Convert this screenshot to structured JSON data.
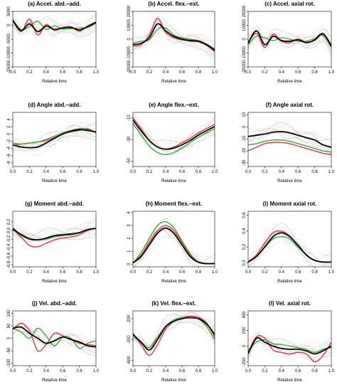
{
  "figure": {
    "colors": {
      "mean": "#000000",
      "red": "#e8324a",
      "green": "#3aaa35",
      "red_light": "#f2a0aa",
      "green_light": "#a8d8a0",
      "gray_light": "#555555"
    }
  },
  "chart_data": [
    {
      "type": "line",
      "title": "(a) Accel. abd.–add.",
      "xlabel": "Relative time",
      "ylabel": "",
      "xlim": [
        0,
        1
      ],
      "ylim": [
        -15000,
        5000
      ],
      "xticks": [
        "0.0",
        "0.2",
        "0.4",
        "0.6",
        "0.8",
        "1.0"
      ],
      "yticks": [
        "5000",
        "0",
        "-5000",
        "-10000",
        "-15000"
      ],
      "x": [
        0,
        0.1,
        0.2,
        0.3,
        0.4,
        0.5,
        0.6,
        0.7,
        0.8,
        0.9,
        1.0
      ],
      "series": [
        {
          "name": "mean",
          "style": "mean",
          "values": [
            1800,
            -2000,
            500,
            -2300,
            -300,
            -1500,
            -1000,
            -800,
            -1700,
            -500,
            1000
          ]
        },
        {
          "name": "red",
          "style": "red",
          "values": [
            1500,
            -2200,
            2200,
            -3500,
            300,
            -1800,
            -800,
            -500,
            -2200,
            -200,
            1200
          ]
        },
        {
          "name": "green",
          "style": "green",
          "values": [
            2000,
            -1500,
            -500,
            1500,
            -1500,
            -200,
            -1300,
            -1200,
            -1000,
            -800,
            800
          ]
        }
      ]
    },
    {
      "type": "line",
      "title": "(b) Accel. flex.–ext.",
      "xlabel": "Relative time",
      "ylabel": "",
      "xlim": [
        0,
        1
      ],
      "ylim": [
        -20000,
        20000
      ],
      "xticks": [
        "0.0",
        "0.2",
        "0.4",
        "0.6",
        "0.8",
        "1.0"
      ],
      "yticks": [
        "20000",
        "10000",
        "0",
        "-10000",
        "-20000"
      ],
      "x": [
        0,
        0.1,
        0.2,
        0.3,
        0.4,
        0.5,
        0.6,
        0.7,
        0.8,
        0.9,
        1.0
      ],
      "series": [
        {
          "name": "mean",
          "style": "mean",
          "values": [
            -4000,
            -3000,
            1000,
            11000,
            6000,
            2000,
            0,
            -1000,
            -1500,
            -4000,
            -8000
          ]
        },
        {
          "name": "red",
          "style": "red",
          "values": [
            -5000,
            -4000,
            3000,
            15000,
            5000,
            1000,
            -500,
            -1500,
            -2000,
            -4500,
            -9000
          ]
        },
        {
          "name": "green",
          "style": "green",
          "values": [
            -3000,
            -1500,
            -500,
            7000,
            8000,
            3000,
            1000,
            0,
            -1000,
            -3500,
            -7000
          ]
        }
      ]
    },
    {
      "type": "line",
      "title": "(c) Accel. axial rot.",
      "xlabel": "Relative time",
      "ylabel": "",
      "xlim": [
        0,
        1
      ],
      "ylim": [
        -20000,
        20000
      ],
      "xticks": [
        "0.0",
        "0.2",
        "0.4",
        "0.6",
        "0.8",
        "1.0"
      ],
      "yticks": [
        "20000",
        "10000",
        "0",
        "-10000",
        "-20000"
      ],
      "x": [
        0,
        0.1,
        0.2,
        0.3,
        0.4,
        0.5,
        0.6,
        0.7,
        0.8,
        0.9,
        1.0
      ],
      "series": [
        {
          "name": "mean",
          "style": "mean",
          "values": [
            -3000,
            6000,
            -4000,
            2000,
            -1000,
            -1500,
            -500,
            -2500,
            -500,
            4000,
            -5000
          ]
        },
        {
          "name": "red",
          "style": "red",
          "values": [
            -2000,
            4000,
            -6000,
            3500,
            -1500,
            -2500,
            0,
            -2000,
            -1000,
            3500,
            -4000
          ]
        },
        {
          "name": "green",
          "style": "green",
          "values": [
            -4000,
            2000,
            1000,
            -1000,
            1000,
            0,
            -1500,
            -1500,
            500,
            2500,
            -6000
          ]
        }
      ]
    },
    {
      "type": "line",
      "title": "(d) Angle abd.–add.",
      "xlabel": "Relative time",
      "ylabel": "",
      "xlim": [
        0,
        1
      ],
      "ylim": [
        -9,
        6
      ],
      "xticks": [
        "0.0",
        "0.2",
        "0.4",
        "0.6",
        "0.8",
        "1.0"
      ],
      "yticks": [
        "4",
        "2",
        "0",
        "-2",
        "-4",
        "-6",
        "-8"
      ],
      "x": [
        0,
        0.1,
        0.2,
        0.3,
        0.4,
        0.5,
        0.6,
        0.7,
        0.8,
        0.9,
        1.0
      ],
      "series": [
        {
          "name": "mean",
          "style": "mean",
          "values": [
            -3,
            -3.6,
            -3.8,
            -3.6,
            -2.5,
            -1.2,
            0,
            0.8,
            1.2,
            1.0,
            0.6
          ]
        },
        {
          "name": "red",
          "style": "red",
          "values": [
            -2.5,
            -2.8,
            -2.5,
            -2.2,
            -1.8,
            -1.0,
            0,
            0.6,
            1.0,
            1.5,
            0.3
          ]
        },
        {
          "name": "green",
          "style": "green",
          "values": [
            -3.2,
            -2.8,
            -2.5,
            -2.2,
            -1.5,
            -0.6,
            0.3,
            1.0,
            1.5,
            1.3,
            0.5
          ]
        }
      ]
    },
    {
      "type": "line",
      "title": "(e) Angle flex.–ext.",
      "xlabel": "Relative time",
      "ylabel": "",
      "xlim": [
        0,
        1
      ],
      "ylim": [
        -55,
        -5
      ],
      "xticks": [
        "0.0",
        "0.2",
        "0.4",
        "0.6",
        "0.8",
        "1.0"
      ],
      "yticks": [
        "-10",
        "-30",
        "-50"
      ],
      "x": [
        0,
        0.1,
        0.2,
        0.3,
        0.4,
        0.5,
        0.6,
        0.7,
        0.8,
        0.9,
        1.0
      ],
      "series": [
        {
          "name": "mean",
          "style": "mean",
          "values": [
            -12,
            -22,
            -31,
            -37,
            -39,
            -38,
            -35,
            -31,
            -26,
            -22,
            -18
          ]
        },
        {
          "name": "red",
          "style": "red",
          "values": [
            -10,
            -20,
            -31,
            -37,
            -39,
            -37,
            -33,
            -29,
            -24,
            -20,
            -16
          ]
        },
        {
          "name": "green",
          "style": "green",
          "values": [
            -15,
            -26,
            -36,
            -42,
            -44,
            -42,
            -38,
            -33,
            -28,
            -24,
            -20
          ]
        }
      ]
    },
    {
      "type": "line",
      "title": "(f) Angle axial rot.",
      "xlabel": "Relative time",
      "ylabel": "",
      "xlim": [
        0,
        1
      ],
      "ylim": [
        -33,
        12
      ],
      "xticks": [
        "0.0",
        "0.2",
        "0.4",
        "0.6",
        "0.8",
        "1.0"
      ],
      "yticks": [
        "10",
        "0",
        "-10",
        "-20",
        "-30"
      ],
      "x": [
        0,
        0.1,
        0.2,
        0.3,
        0.4,
        0.5,
        0.6,
        0.7,
        0.8,
        0.9,
        1.0
      ],
      "series": [
        {
          "name": "mean",
          "style": "mean",
          "values": [
            -8,
            -7,
            -6,
            -4.5,
            -4,
            -5,
            -7,
            -9,
            -11,
            -15,
            -17
          ]
        },
        {
          "name": "red",
          "style": "red",
          "values": [
            -20,
            -17,
            -14,
            -13,
            -13,
            -14,
            -16,
            -18,
            -20,
            -22,
            -23
          ]
        },
        {
          "name": "green",
          "style": "green",
          "values": [
            -15,
            -14,
            -12,
            -11,
            -11,
            -12,
            -14,
            -16,
            -18,
            -20,
            -21
          ]
        }
      ]
    },
    {
      "type": "line",
      "title": "(g) Moment abd.–add.",
      "xlabel": "Relative time",
      "ylabel": "",
      "xlim": [
        0,
        1
      ],
      "ylim": [
        -0.85,
        0.45
      ],
      "xticks": [
        "0.0",
        "0.2",
        "0.4",
        "0.6",
        "0.8",
        "1.0"
      ],
      "yticks": [
        "0.2",
        "0.0",
        "-0.2",
        "-0.4",
        "-0.6",
        "-0.8"
      ],
      "x": [
        0,
        0.1,
        0.2,
        0.3,
        0.4,
        0.5,
        0.6,
        0.7,
        0.8,
        0.9,
        1.0
      ],
      "series": [
        {
          "name": "mean",
          "style": "mean",
          "values": [
            0.05,
            -0.1,
            -0.2,
            -0.22,
            -0.18,
            -0.12,
            -0.1,
            -0.08,
            -0.05,
            0.02,
            0.05
          ]
        },
        {
          "name": "red",
          "style": "red",
          "values": [
            0.02,
            -0.15,
            -0.35,
            -0.38,
            -0.3,
            -0.22,
            -0.18,
            -0.15,
            -0.1,
            0,
            0.05
          ]
        },
        {
          "name": "green",
          "style": "green",
          "values": [
            0,
            -0.08,
            -0.18,
            -0.22,
            -0.2,
            -0.15,
            -0.12,
            -0.1,
            -0.06,
            0.02,
            0.05
          ]
        }
      ]
    },
    {
      "type": "line",
      "title": "(h) Moment flex.–ext.",
      "xlabel": "Relative time",
      "ylabel": "",
      "xlim": [
        0,
        1
      ],
      "ylim": [
        -0.2,
        4.1
      ],
      "xticks": [
        "0.0",
        "0.2",
        "0.4",
        "0.6",
        "0.8",
        "1.0"
      ],
      "yticks": [
        "4",
        "3",
        "2",
        "1",
        "0"
      ],
      "x": [
        0,
        0.1,
        0.2,
        0.3,
        0.4,
        0.5,
        0.6,
        0.7,
        0.8,
        0.9,
        1.0
      ],
      "series": [
        {
          "name": "mean",
          "style": "mean",
          "values": [
            0.1,
            0.6,
            1.5,
            2.4,
            2.8,
            2.4,
            1.5,
            0.6,
            0.15,
            0.05,
            0.05
          ]
        },
        {
          "name": "red",
          "style": "red",
          "values": [
            0.1,
            0.7,
            1.7,
            2.6,
            3.0,
            2.6,
            1.7,
            0.7,
            0.2,
            0.05,
            0.05
          ]
        },
        {
          "name": "green",
          "style": "green",
          "values": [
            0.1,
            0.9,
            2.0,
            3.0,
            3.3,
            2.8,
            1.8,
            0.8,
            0.2,
            0.05,
            0.05
          ]
        }
      ]
    },
    {
      "type": "line",
      "title": "(i) Moment axial rot.",
      "xlabel": "Relative time",
      "ylabel": "",
      "xlim": [
        0,
        1
      ],
      "ylim": [
        -0.05,
        0.65
      ],
      "xticks": [
        "0.0",
        "0.2",
        "0.4",
        "0.6",
        "0.8",
        "1.0"
      ],
      "yticks": [
        "0.6",
        "0.4",
        "0.2",
        "0.0"
      ],
      "x": [
        0,
        0.1,
        0.2,
        0.3,
        0.4,
        0.5,
        0.6,
        0.7,
        0.8,
        0.9,
        1.0
      ],
      "series": [
        {
          "name": "mean",
          "style": "mean",
          "values": [
            0.01,
            0.08,
            0.2,
            0.33,
            0.38,
            0.33,
            0.22,
            0.1,
            0.03,
            0.01,
            0.01
          ]
        },
        {
          "name": "red",
          "style": "red",
          "values": [
            0.01,
            0.1,
            0.25,
            0.38,
            0.4,
            0.34,
            0.22,
            0.1,
            0.03,
            0.01,
            0.01
          ]
        },
        {
          "name": "green",
          "style": "green",
          "values": [
            0.01,
            0.08,
            0.2,
            0.3,
            0.33,
            0.3,
            0.2,
            0.1,
            0.03,
            0.01,
            0.01
          ]
        }
      ]
    },
    {
      "type": "line",
      "title": "(j) Vel. abd.–add.",
      "xlabel": "Relative time",
      "ylabel": "",
      "xlim": [
        0,
        1
      ],
      "ylim": [
        -110,
        110
      ],
      "xticks": [
        "0.0",
        "0.2",
        "0.4",
        "0.6",
        "0.8",
        "1.0"
      ],
      "yticks": [
        "100",
        "50",
        "0",
        "-50",
        "-100"
      ],
      "x": [
        0,
        0.1,
        0.2,
        0.3,
        0.4,
        0.5,
        0.6,
        0.7,
        0.8,
        0.9,
        1.0
      ],
      "series": [
        {
          "name": "mean",
          "style": "mean",
          "values": [
            40,
            45,
            20,
            0,
            -20,
            -10,
            5,
            -5,
            -15,
            -30,
            -35
          ]
        },
        {
          "name": "red",
          "style": "red",
          "values": [
            35,
            60,
            30,
            -50,
            -25,
            20,
            10,
            -5,
            -20,
            -25,
            -30
          ]
        },
        {
          "name": "green",
          "style": "green",
          "values": [
            40,
            25,
            0,
            40,
            10,
            -30,
            5,
            0,
            -40,
            -20,
            -10
          ]
        }
      ]
    },
    {
      "type": "line",
      "title": "(k) Vel. flex.–ext.",
      "xlabel": "Relative time",
      "ylabel": "",
      "xlim": [
        0,
        1
      ],
      "ylim": [
        -700,
        350
      ],
      "xticks": [
        "0.0",
        "0.2",
        "0.4",
        "0.6",
        "0.8",
        "1.0"
      ],
      "yticks": [
        "200",
        "-200",
        "-600"
      ],
      "x": [
        0,
        0.1,
        0.2,
        0.3,
        0.4,
        0.5,
        0.6,
        0.7,
        0.8,
        0.9,
        1.0
      ],
      "series": [
        {
          "name": "mean",
          "style": "mean",
          "values": [
            -100,
            -250,
            -400,
            -200,
            50,
            150,
            200,
            220,
            200,
            100,
            -100
          ]
        },
        {
          "name": "red",
          "style": "red",
          "values": [
            -80,
            -300,
            -500,
            -300,
            0,
            150,
            220,
            250,
            230,
            120,
            -150
          ]
        },
        {
          "name": "green",
          "style": "green",
          "values": [
            -150,
            -250,
            -350,
            -150,
            50,
            180,
            220,
            230,
            200,
            50,
            -200
          ]
        }
      ]
    },
    {
      "type": "line",
      "title": "(l) Vel. axial rot.",
      "xlabel": "Relative time",
      "ylabel": "",
      "xlim": [
        0,
        1
      ],
      "ylim": [
        -250,
        450
      ],
      "xticks": [
        "0.0",
        "0.2",
        "0.4",
        "0.6",
        "0.8",
        "1.0"
      ],
      "yticks": [
        "400",
        "200",
        "0",
        "-200"
      ],
      "x": [
        0,
        0.1,
        0.2,
        0.3,
        0.4,
        0.5,
        0.6,
        0.7,
        0.8,
        0.9,
        1.0
      ],
      "series": [
        {
          "name": "mean",
          "style": "mean",
          "values": [
            -100,
            100,
            50,
            0,
            -30,
            -40,
            -40,
            -60,
            -100,
            -60,
            0
          ]
        },
        {
          "name": "red",
          "style": "red",
          "values": [
            -80,
            120,
            100,
            -50,
            -80,
            -100,
            -80,
            -100,
            -200,
            -120,
            50
          ]
        },
        {
          "name": "green",
          "style": "green",
          "values": [
            -50,
            50,
            80,
            30,
            20,
            0,
            -20,
            -40,
            -80,
            -40,
            -20
          ]
        }
      ]
    }
  ]
}
